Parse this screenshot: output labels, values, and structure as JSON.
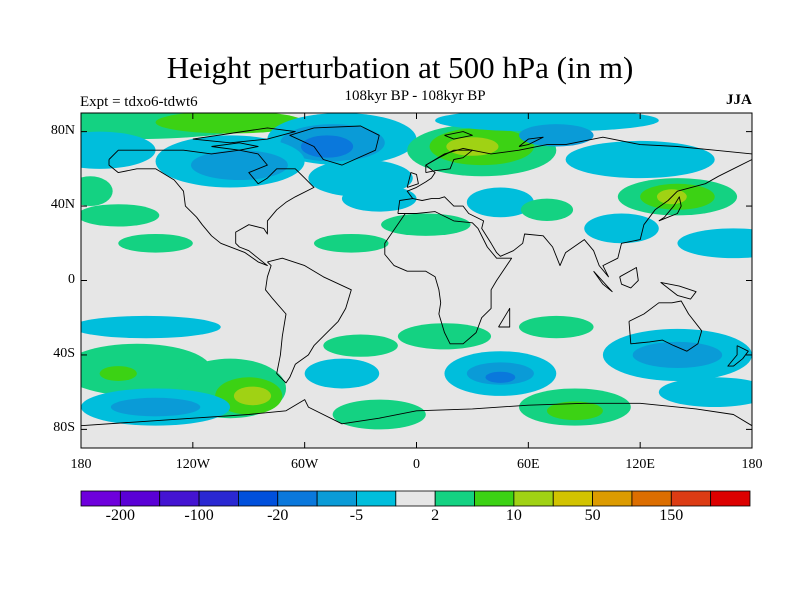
{
  "title": "Height perturbation at 500 hPa (in m)",
  "subtitle": "108kyr BP - 108kyr BP",
  "experiment": "Expt = tdxo6-tdwt6",
  "season": "JJA",
  "lat_ticks": [
    {
      "lat": 80,
      "label": "80N"
    },
    {
      "lat": 40,
      "label": "40N"
    },
    {
      "lat": 0,
      "label": "0"
    },
    {
      "lat": -40,
      "label": "40S"
    },
    {
      "lat": -80,
      "label": "80S"
    }
  ],
  "lon_ticks": [
    {
      "lon": -180,
      "label": "180"
    },
    {
      "lon": -120,
      "label": "120W"
    },
    {
      "lon": -60,
      "label": "60W"
    },
    {
      "lon": 0,
      "label": "0"
    },
    {
      "lon": 60,
      "label": "60E"
    },
    {
      "lon": 120,
      "label": "120E"
    },
    {
      "lon": 180,
      "label": "180"
    }
  ],
  "colorbar": {
    "colors": [
      "#6e00dc",
      "#5a00d6",
      "#4414d2",
      "#2a28d2",
      "#0050dc",
      "#0a78dc",
      "#0a9bd7",
      "#00bedc",
      "#e6e6e6",
      "#14d282",
      "#3cd214",
      "#a0d214",
      "#d2c300",
      "#dc9b00",
      "#dc6e00",
      "#dc3c14",
      "#dc0000"
    ],
    "labels": [
      {
        "text": "-200",
        "boundary": 1
      },
      {
        "text": "-100",
        "boundary": 3
      },
      {
        "text": "-20",
        "boundary": 5
      },
      {
        "text": "-5",
        "boundary": 7
      },
      {
        "text": "2",
        "boundary": 9
      },
      {
        "text": "10",
        "boundary": 11
      },
      {
        "text": "50",
        "boundary": 13
      },
      {
        "text": "150",
        "boundary": 15
      }
    ]
  },
  "fields": {
    "background": "#e6e6e6",
    "blue_light": "#00bedc",
    "blue_mid": "#0a9bd7",
    "blue_dark": "#0a78dc",
    "green_light": "#14d282",
    "green_mid": "#3cd214",
    "yellow_green": "#a0d214"
  }
}
